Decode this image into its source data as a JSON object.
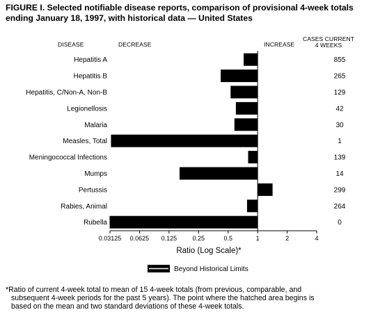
{
  "title_line1": "FIGURE I. Selected notifiable disease reports, comparison of provisional 4-week totals",
  "title_line2": "ending January 18, 1997, with historical data — United States",
  "headers": {
    "disease": "DISEASE",
    "decrease": "DECREASE",
    "increase": "INCREASE",
    "cases_line1": "CASES CURRENT",
    "cases_line2": "4 WEEKS"
  },
  "chart_data": {
    "type": "bar",
    "orientation": "horizontal",
    "x_scale": "log2",
    "xlim": [
      0.03125,
      4
    ],
    "xlabel": "Ratio (Log Scale)*",
    "baseline": 1,
    "xticks": [
      0.03125,
      0.0625,
      0.125,
      0.25,
      0.5,
      1,
      2,
      4
    ],
    "xtick_labels": [
      "0.03125",
      "0.0625",
      "0.125",
      "0.25",
      "0.5",
      "1",
      "2",
      "4"
    ],
    "categories": [
      "Hepatitis A",
      "Hepatitis B",
      "Hepatitis, C/Non-A, Non-B",
      "Legionellosis",
      "Malaria",
      "Measles, Total",
      "Meningococcal Infections",
      "Mumps",
      "Pertussis",
      "Rabies, Animal",
      "Rubella"
    ],
    "values": [
      0.72,
      0.42,
      0.53,
      0.6,
      0.58,
      0.032,
      0.8,
      0.16,
      1.42,
      0.78,
      0.031
    ],
    "cases": [
      "855",
      "265",
      "129",
      "42",
      "30",
      "1",
      "139",
      "14",
      "299",
      "264",
      "0"
    ],
    "legend": "Beyond Historical Limits",
    "bar_color": "#000000"
  },
  "footnote_line1": "*Ratio of current 4-week total to mean of 15 4-week totals (from previous, comparable, and",
  "footnote_line2": "subsequent 4-week periods for the past 5 years). The point where the hatched area begins is",
  "footnote_line3": "based on the mean and two standard deviations of these 4-week totals."
}
